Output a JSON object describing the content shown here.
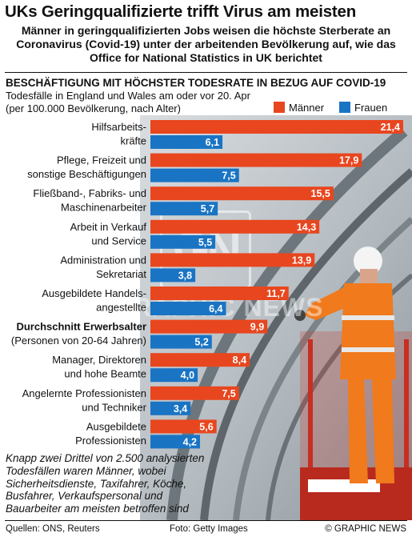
{
  "header": {
    "title": "UKs Geringqualifizierte trifft Virus am meisten",
    "subtitle_lines": [
      "Männer in geringqualifizierten Jobs weisen die höchste Sterberate an",
      "Coronavirus  (Covid-19) unter der arbeitenden Bevölkerung auf, wie das",
      "Office for National Statistics in UK berichtet"
    ]
  },
  "chart_data": {
    "type": "bar",
    "orientation": "horizontal",
    "title": "BESCHÄFTIGUNG MIT HÖCHSTER TODESRATE IN BEZUG AUF COVID-19",
    "subtitle_lines": [
      "Todesfälle in England und Wales am oder vor 20. Apr",
      "(per 100.000 Bevölkerung, nach Alter)"
    ],
    "categories": [
      [
        "Hilfsarbeits-",
        "kräfte"
      ],
      [
        "Pflege, Freizeit und",
        "sonstige Beschäftigungen"
      ],
      [
        "Fließband-, Fabriks- und",
        "Maschinenarbeiter"
      ],
      [
        "Arbeit in Verkauf",
        "und Service"
      ],
      [
        "Administration und",
        "Sekretariat"
      ],
      [
        "Ausgebildete Handels-",
        "angestellte"
      ],
      [
        "Durchschnitt Erwerbsalter",
        "(Personen von 20-64 Jahren)"
      ],
      [
        "Manager, Direktoren",
        "und hohe Beamte"
      ],
      [
        "Angelernte Professionisten",
        "und Techniker"
      ],
      [
        "Ausgebildete",
        "Professionisten"
      ]
    ],
    "highlight_index": 6,
    "series": [
      {
        "name": "Männer",
        "color": "#e8461f",
        "values": [
          21.4,
          17.9,
          15.5,
          14.3,
          13.9,
          11.7,
          9.9,
          8.4,
          7.5,
          5.6
        ],
        "labels": [
          "21,4",
          "17,9",
          "15,5",
          "14,3",
          "13,9",
          "11,7",
          "9,9",
          "8,4",
          "7,5",
          "5,6"
        ]
      },
      {
        "name": "Frauen",
        "color": "#1a74c4",
        "values": [
          6.1,
          7.5,
          5.7,
          5.5,
          3.8,
          6.4,
          5.2,
          4.0,
          3.4,
          4.2
        ],
        "labels": [
          "6,1",
          "7,5",
          "5,7",
          "5,5",
          "3,8",
          "6,4",
          "5,2",
          "4,0",
          "3,4",
          "4,2"
        ]
      }
    ],
    "xlim": [
      0,
      21.4
    ]
  },
  "watermark": {
    "logo": "GN",
    "text": "GRAPHIC NEWS"
  },
  "note_lines": [
    "Knapp zwei Drittel von 2.500 analysierten",
    "Todesfällen waren Männer, wobei",
    "Sicherheitsdienste, Taxifahrer, Köche,",
    "Busfahrer, Verkaufspersonal und",
    "Bauarbeiter am meisten betroffen sind"
  ],
  "footer": {
    "sources": "Quellen: ONS, Reuters",
    "photo": "Foto: Getty Images",
    "credit": "© GRAPHIC NEWS"
  }
}
